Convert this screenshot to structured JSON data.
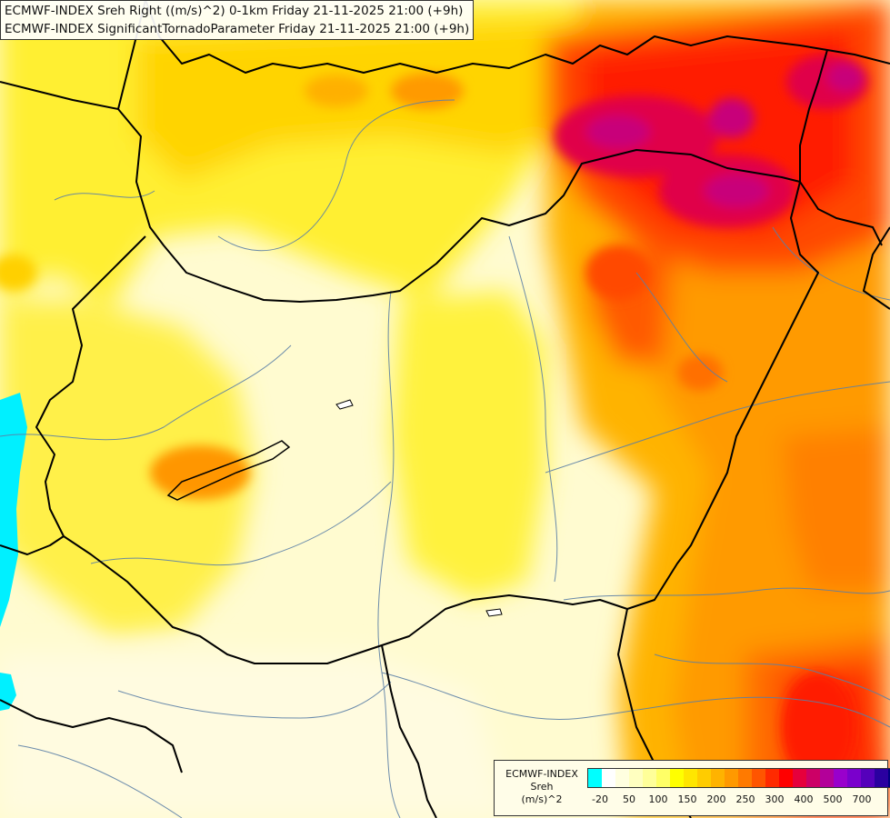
{
  "header": {
    "line1": "ECMWF-INDEX Sreh Right ((m/s)^2) 0-1km Friday 21-11-2025 21:00 (+9h)",
    "line2": "ECMWF-INDEX SignificantTornadoParameter Friday 21-11-2025 21:00 (+9h)"
  },
  "legend": {
    "source": "ECMWF-INDEX",
    "variable": "Sreh",
    "unit": "(m/s)^2",
    "colors": [
      "#00ffff",
      "#ffffff",
      "#ffffe0",
      "#ffffc0",
      "#ffff99",
      "#ffff66",
      "#ffff00",
      "#ffe600",
      "#ffcc00",
      "#ffb300",
      "#ff9900",
      "#ff7a00",
      "#ff5500",
      "#ff2a00",
      "#ff0000",
      "#e6003c",
      "#cc0066",
      "#b30099",
      "#9900cc",
      "#7a00cc",
      "#5500bb",
      "#2a00a0",
      "#000080"
    ],
    "tick_labels": [
      "-20",
      "50",
      "100",
      "150",
      "200",
      "250",
      "300",
      "400",
      "500",
      "700"
    ]
  }
}
